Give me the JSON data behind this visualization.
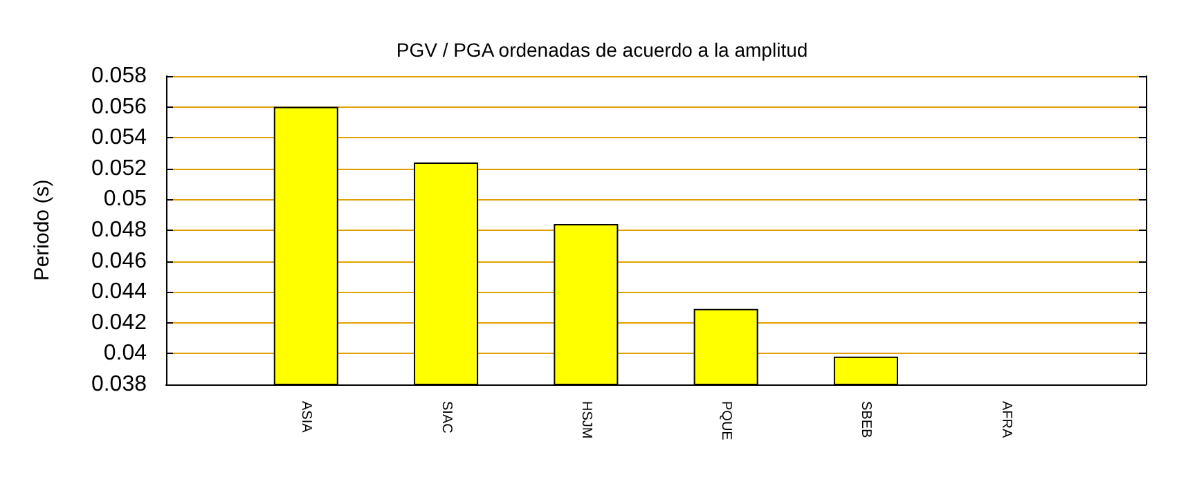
{
  "chart_data": {
    "type": "bar",
    "title": "PGV / PGA ordenadas de acuerdo a la amplitud",
    "ylabel": "Periodo (s)",
    "categories": [
      null,
      "ASIA",
      "SIAC",
      "HSJM",
      "PQUE",
      "SBEB",
      "AFRA",
      null
    ],
    "values": [
      null,
      0.056,
      0.0524,
      0.0484,
      0.0429,
      0.0398,
      null,
      null
    ],
    "color": "#ffff00",
    "ylim": [
      0.038,
      0.058
    ],
    "yticks": [
      0.038,
      0.04,
      0.042,
      0.044,
      0.046,
      0.048,
      0.05,
      0.052,
      0.054,
      0.056,
      0.058
    ],
    "grid": "y"
  }
}
